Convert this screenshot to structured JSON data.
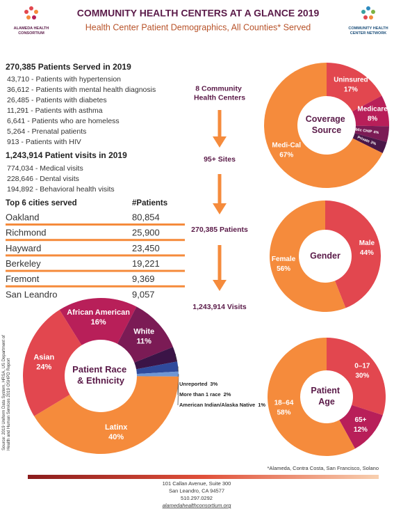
{
  "header": {
    "left_logo": "ALAMEDA HEALTH CONSORTIUM",
    "right_logo": "COMMUNITY HEALTH CENTER NETWORK",
    "title": "COMMUNITY HEALTH CENTERS AT A GLANCE 2019",
    "subtitle": "Health Center Patient Demographics, All Counties* Served"
  },
  "summary": {
    "patients_heading": "270,385 Patients Served in 2019",
    "patient_items": [
      "43,710 - Patients with hypertension",
      "36,612 - Patients with mental health diagnosis",
      "26,485 - Patients with diabetes",
      "11,291 - Patients with asthma",
      "6,641 - Patients who are homeless",
      "5,264 - Prenatal patients",
      "913 - Patients with HIV"
    ],
    "visits_heading": "1,243,914 Patient visits in 2019",
    "visit_items": [
      "774,034 - Medical visits",
      "228,646 - Dental visits",
      "194,892 - Behavioral health visits"
    ]
  },
  "cities": {
    "header": [
      "Top 6 cities served",
      "#Patients"
    ],
    "rows": [
      [
        "Oakland",
        "80,854"
      ],
      [
        "Richmond",
        "25,900"
      ],
      [
        "Hayward",
        "23,450"
      ],
      [
        "Berkeley",
        "19,221"
      ],
      [
        "Fremont",
        "9,369"
      ],
      [
        "San Leandro",
        "9,057"
      ]
    ]
  },
  "flow": [
    "8 Community Health Centers",
    "95+ Sites",
    "270,385 Patients",
    "1,243,914 Visits"
  ],
  "chart_data": [
    {
      "type": "pie",
      "title": "Coverage Source",
      "categories": [
        "Uninsured",
        "Medicare",
        "Other/Public CHIP",
        "Private",
        "Medi-Cal"
      ],
      "values": [
        17,
        8,
        4,
        3,
        67
      ],
      "value_labels": [
        "17%",
        "8%",
        "4%",
        "3%",
        "67%"
      ],
      "colors": [
        "#e2474f",
        "#b81f59",
        "#7b1b55",
        "#4a1748",
        "#f58b3c"
      ]
    },
    {
      "type": "pie",
      "title": "Gender",
      "categories": [
        "Male",
        "Female"
      ],
      "values": [
        44,
        56
      ],
      "value_labels": [
        "44%",
        "56%"
      ],
      "colors": [
        "#e2474f",
        "#f58b3c"
      ]
    },
    {
      "type": "pie",
      "title": "Patient Race & Ethnicity",
      "categories": [
        "African American",
        "White",
        "Unreported",
        "More than 1 race",
        "American Indian/Alaska Native",
        "Latinx",
        "Asian"
      ],
      "values": [
        16,
        11,
        3,
        2,
        1,
        40,
        24
      ],
      "value_labels": [
        "16%",
        "11%",
        "3%",
        "2%",
        "1%",
        "40%",
        "24%"
      ],
      "colors": [
        "#b81f59",
        "#7b1b55",
        "#3b1447",
        "#2f4a9c",
        "#6f96d4",
        "#f58b3c",
        "#e2474f"
      ]
    },
    {
      "type": "pie",
      "title": "Patient Age",
      "categories": [
        "0–17",
        "65+",
        "18–64"
      ],
      "values": [
        30,
        12,
        58
      ],
      "value_labels": [
        "30%",
        "12%",
        "58%"
      ],
      "colors": [
        "#e2474f",
        "#b81f59",
        "#f58b3c"
      ]
    }
  ],
  "source": "Source: 2019 Uniform Data System, HRSA, US Department of Health and Human Services 2019 OSHPD Report",
  "footnote": "*Alameda, Contra Costa, San Francisco, Solano",
  "footer": [
    "101 Callan Avenue, Suite 300",
    "San Leandro, CA 94577",
    "510.297.0292",
    "alamedahealthconsortium.org"
  ]
}
